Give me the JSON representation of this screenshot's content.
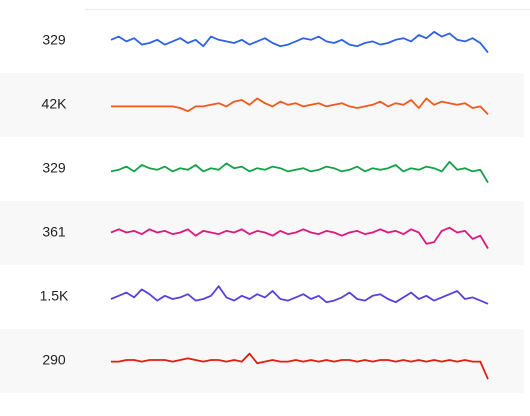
{
  "rows": [
    {
      "label": "329",
      "color": "#2f62e3",
      "values": [
        12,
        14,
        11,
        13,
        9,
        10,
        12,
        9,
        11,
        13,
        10,
        12,
        8,
        14,
        12,
        11,
        10,
        12,
        9,
        11,
        13,
        10,
        8,
        9,
        11,
        13,
        12,
        14,
        11,
        10,
        12,
        9,
        8,
        10,
        11,
        9,
        10,
        12,
        13,
        11,
        15,
        13,
        17,
        14,
        16,
        12,
        11,
        13,
        10,
        4
      ]
    },
    {
      "label": "42K",
      "color": "#f05a1c",
      "values": [
        10,
        10,
        10,
        10,
        10,
        10,
        10,
        10,
        10,
        9,
        7,
        10,
        10,
        11,
        12,
        10,
        13,
        14,
        11,
        15,
        12,
        10,
        13,
        11,
        12,
        10,
        11,
        12,
        10,
        11,
        12,
        10,
        9,
        10,
        11,
        13,
        10,
        12,
        11,
        14,
        9,
        15,
        11,
        13,
        12,
        11,
        12,
        9,
        10,
        5
      ]
    },
    {
      "label": "329",
      "color": "#12a347",
      "values": [
        10,
        11,
        13,
        10,
        14,
        12,
        11,
        13,
        10,
        12,
        11,
        14,
        10,
        12,
        11,
        15,
        12,
        13,
        10,
        12,
        11,
        13,
        12,
        10,
        11,
        12,
        10,
        11,
        13,
        12,
        10,
        11,
        13,
        10,
        12,
        11,
        12,
        14,
        10,
        12,
        11,
        13,
        12,
        10,
        16,
        11,
        12,
        10,
        11,
        3
      ]
    },
    {
      "label": "361",
      "color": "#e0177d",
      "values": [
        12,
        14,
        12,
        13,
        11,
        14,
        12,
        13,
        11,
        12,
        14,
        10,
        13,
        12,
        11,
        13,
        12,
        14,
        11,
        13,
        12,
        10,
        13,
        11,
        12,
        14,
        12,
        11,
        13,
        12,
        10,
        12,
        13,
        11,
        12,
        14,
        12,
        13,
        11,
        14,
        12,
        5,
        6,
        13,
        15,
        12,
        13,
        8,
        10,
        2
      ]
    },
    {
      "label": "1.5K",
      "color": "#5b3fdf",
      "values": [
        10,
        12,
        14,
        11,
        16,
        13,
        9,
        12,
        10,
        11,
        13,
        9,
        10,
        12,
        18,
        11,
        9,
        12,
        10,
        13,
        11,
        15,
        10,
        9,
        11,
        13,
        10,
        12,
        8,
        9,
        11,
        14,
        10,
        9,
        12,
        13,
        10,
        8,
        11,
        14,
        10,
        12,
        9,
        11,
        13,
        15,
        10,
        11,
        9,
        7
      ]
    },
    {
      "label": "290",
      "color": "#e11d12",
      "values": [
        11,
        11,
        12,
        12,
        11,
        12,
        12,
        12,
        11,
        12,
        13,
        12,
        11,
        12,
        12,
        11,
        12,
        11,
        16,
        10,
        11,
        12,
        11,
        11,
        12,
        11,
        12,
        11,
        12,
        11,
        12,
        12,
        11,
        12,
        11,
        12,
        12,
        11,
        12,
        11,
        12,
        11,
        12,
        11,
        12,
        11,
        12,
        11,
        11,
        0
      ]
    }
  ]
}
